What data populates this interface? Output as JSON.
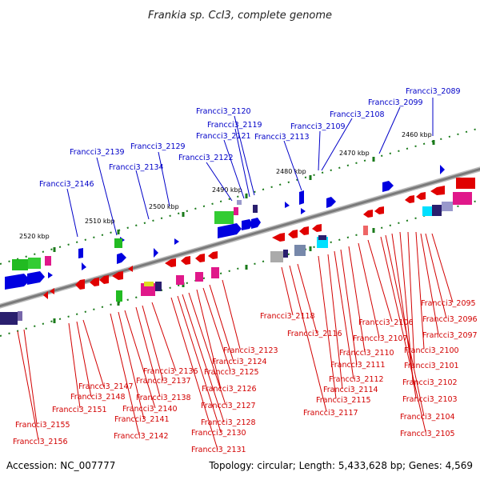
{
  "title": "Frankia sp. CcI3, complete genome",
  "accession": "Accession: NC_007777",
  "topology": "Topology: circular; Length: 5,433,628 bp; Genes: 4,569",
  "scale_labels": [
    "2520 kbp",
    "2510 kbp",
    "2500 kbp",
    "2490 kbp",
    "2480 kbp",
    "2470 kbp",
    "2460 kbp"
  ],
  "top_labels": [
    "Francci3_2089",
    "Francci3_2099",
    "Francci3_2108",
    "Francci3_2109",
    "Francci3_2113",
    "Francci3_2120",
    "Francci3_2119",
    "Francci3_2121",
    "Francci3_2122",
    "Francci3_2129",
    "Francci3_2134",
    "Francci3_2139",
    "Francci3_2146"
  ],
  "bottom_labels": [
    "Francci3_2095",
    "Francci3_2096",
    "Francci3_2097",
    "Francci3_2100",
    "Francci3_2101",
    "Francci3_2102",
    "Francci3_2103",
    "Francci3_2104",
    "Francci3_2105",
    "Francci3_2106",
    "Francci3_2107",
    "Francci3_2110",
    "Francci3_2111",
    "Francci3_2112",
    "Francci3_2114",
    "Francci3_2115",
    "Francci3_2116",
    "Francci3_2117",
    "Francci3_2118",
    "Francci3_2123",
    "Francci3_2124",
    "Francci3_2125",
    "Francci3_2126",
    "Francci3_2127",
    "Francci3_2128",
    "Francci3_2130",
    "Francci3_2131",
    "Francci3_2136",
    "Francci3_2137",
    "Francci3_2138",
    "Francci3_2140",
    "Francci3_2141",
    "Francci3_2142",
    "Francci3_2147",
    "Francci3_2148",
    "Francci3_2151",
    "Francci3_2155",
    "Francci3_2156"
  ],
  "colors": {
    "backbone": "#888888",
    "forward_cds": "#0000e0",
    "reverse_cds": "#e00000",
    "label_top": "#0000c8",
    "label_bottom": "#d20000",
    "ruler_ticks": "#1a7a1a",
    "gc_high": "#22bb22",
    "gc_pink": "#e0188a",
    "gc_navy": "#2a1f6e"
  }
}
